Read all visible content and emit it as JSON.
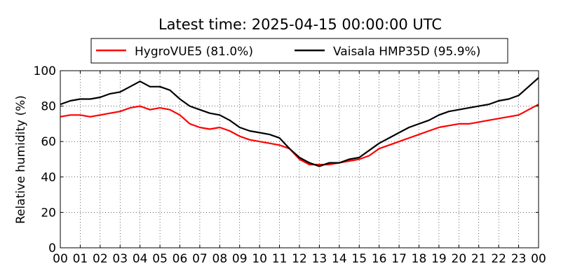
{
  "chart_data": {
    "type": "line",
    "title": "Latest time: 2025-04-15 00:00:00 UTC",
    "ylabel": "Relative humidity (%)",
    "xlabel": "",
    "xlim": [
      0,
      24
    ],
    "ylim": [
      0,
      100
    ],
    "grid": true,
    "legend_position": "top-center",
    "x_tick_labels": [
      "00",
      "01",
      "02",
      "03",
      "04",
      "05",
      "06",
      "07",
      "08",
      "09",
      "10",
      "11",
      "12",
      "13",
      "14",
      "15",
      "16",
      "17",
      "18",
      "19",
      "20",
      "21",
      "22",
      "23",
      "00"
    ],
    "y_tick_labels": [
      "0",
      "20",
      "40",
      "60",
      "80",
      "100"
    ],
    "series": [
      {
        "name": "HygroVUE5 (81.0%)",
        "color": "#ff0000",
        "x": [
          0,
          0.5,
          1,
          1.5,
          2,
          2.5,
          3,
          3.5,
          4,
          4.5,
          5,
          5.5,
          6,
          6.5,
          7,
          7.5,
          8,
          8.5,
          9,
          9.5,
          10,
          10.5,
          11,
          11.5,
          12,
          12.5,
          13,
          13.5,
          14,
          14.5,
          15,
          15.5,
          16,
          16.5,
          17,
          17.5,
          18,
          18.5,
          19,
          19.5,
          20,
          20.5,
          21,
          21.5,
          22,
          22.5,
          23,
          23.5,
          24
        ],
        "y": [
          74,
          75,
          75,
          74,
          75,
          76,
          77,
          79,
          80,
          78,
          79,
          78,
          75,
          70,
          68,
          67,
          68,
          66,
          63,
          61,
          60,
          59,
          58,
          56,
          50,
          47,
          47,
          47,
          48,
          49,
          50,
          52,
          56,
          58,
          60,
          62,
          64,
          66,
          68,
          69,
          70,
          70,
          71,
          72,
          73,
          74,
          75,
          78,
          81
        ]
      },
      {
        "name": "Vaisala HMP35D (95.9%)",
        "color": "#000000",
        "x": [
          0,
          0.5,
          1,
          1.5,
          2,
          2.5,
          3,
          3.5,
          4,
          4.5,
          5,
          5.5,
          6,
          6.5,
          7,
          7.5,
          8,
          8.5,
          9,
          9.5,
          10,
          10.5,
          11,
          11.5,
          12,
          12.5,
          13,
          13.5,
          14,
          14.5,
          15,
          15.5,
          16,
          16.5,
          17,
          17.5,
          18,
          18.5,
          19,
          19.5,
          20,
          20.5,
          21,
          21.5,
          22,
          22.5,
          23,
          23.5,
          24
        ],
        "y": [
          81,
          83,
          84,
          84,
          85,
          87,
          88,
          91,
          94,
          91,
          91,
          89,
          84,
          80,
          78,
          76,
          75,
          72,
          68,
          66,
          65,
          64,
          62,
          56,
          51,
          48,
          46,
          48,
          48,
          50,
          51,
          55,
          59,
          62,
          65,
          68,
          70,
          72,
          75,
          77,
          78,
          79,
          80,
          81,
          83,
          84,
          86,
          91,
          96
        ]
      }
    ]
  }
}
